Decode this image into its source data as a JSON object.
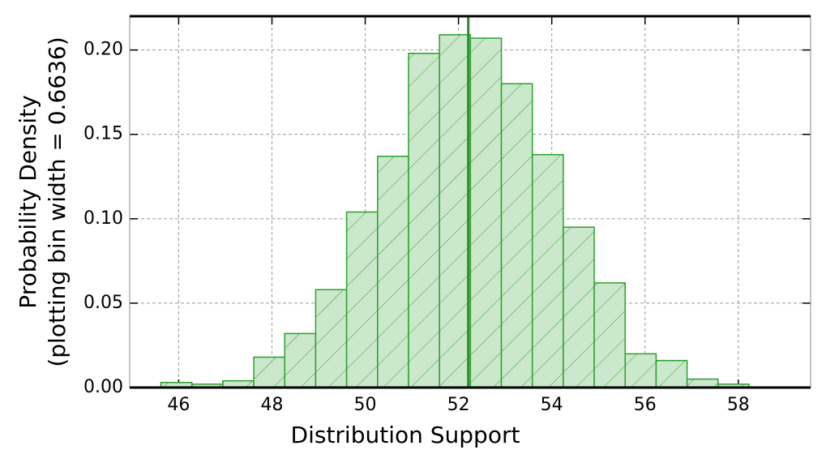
{
  "chart_data": {
    "type": "histogram",
    "xlabel": "Distribution Support",
    "ylabel": [
      "Probability Density",
      "(plotting bin width = 0.6636)"
    ],
    "bins": [
      45.62,
      46.2836,
      46.9472,
      47.6108,
      48.2744,
      48.938,
      49.6016,
      50.2652,
      50.9288,
      51.5924,
      52.256,
      52.9196,
      53.5832,
      54.2468,
      54.9104,
      55.574,
      56.2376,
      56.9012,
      57.5648,
      58.2284
    ],
    "values": [
      0.003,
      0.002,
      0.004,
      0.018,
      0.032,
      0.058,
      0.104,
      0.137,
      0.198,
      0.209,
      0.207,
      0.18,
      0.138,
      0.095,
      0.062,
      0.02,
      0.016,
      0.005,
      0.002
    ],
    "color": "#2ca02c",
    "fill": "#cce8cc",
    "hatch": true,
    "vline": 52.21,
    "vline_color": "#2e8b2e",
    "xlim": [
      44.95,
      59.55
    ],
    "ylim": [
      0,
      0.22
    ],
    "xticks": [
      46,
      48,
      50,
      52,
      54,
      56,
      58
    ],
    "yticks": [
      {
        "value": 0,
        "label": "0.00"
      },
      {
        "value": 0.05,
        "label": "0.05"
      },
      {
        "value": 0.1,
        "label": "0.10"
      },
      {
        "value": 0.15,
        "label": "0.15"
      },
      {
        "value": 0.2,
        "label": "0.20"
      }
    ],
    "grid": true
  }
}
